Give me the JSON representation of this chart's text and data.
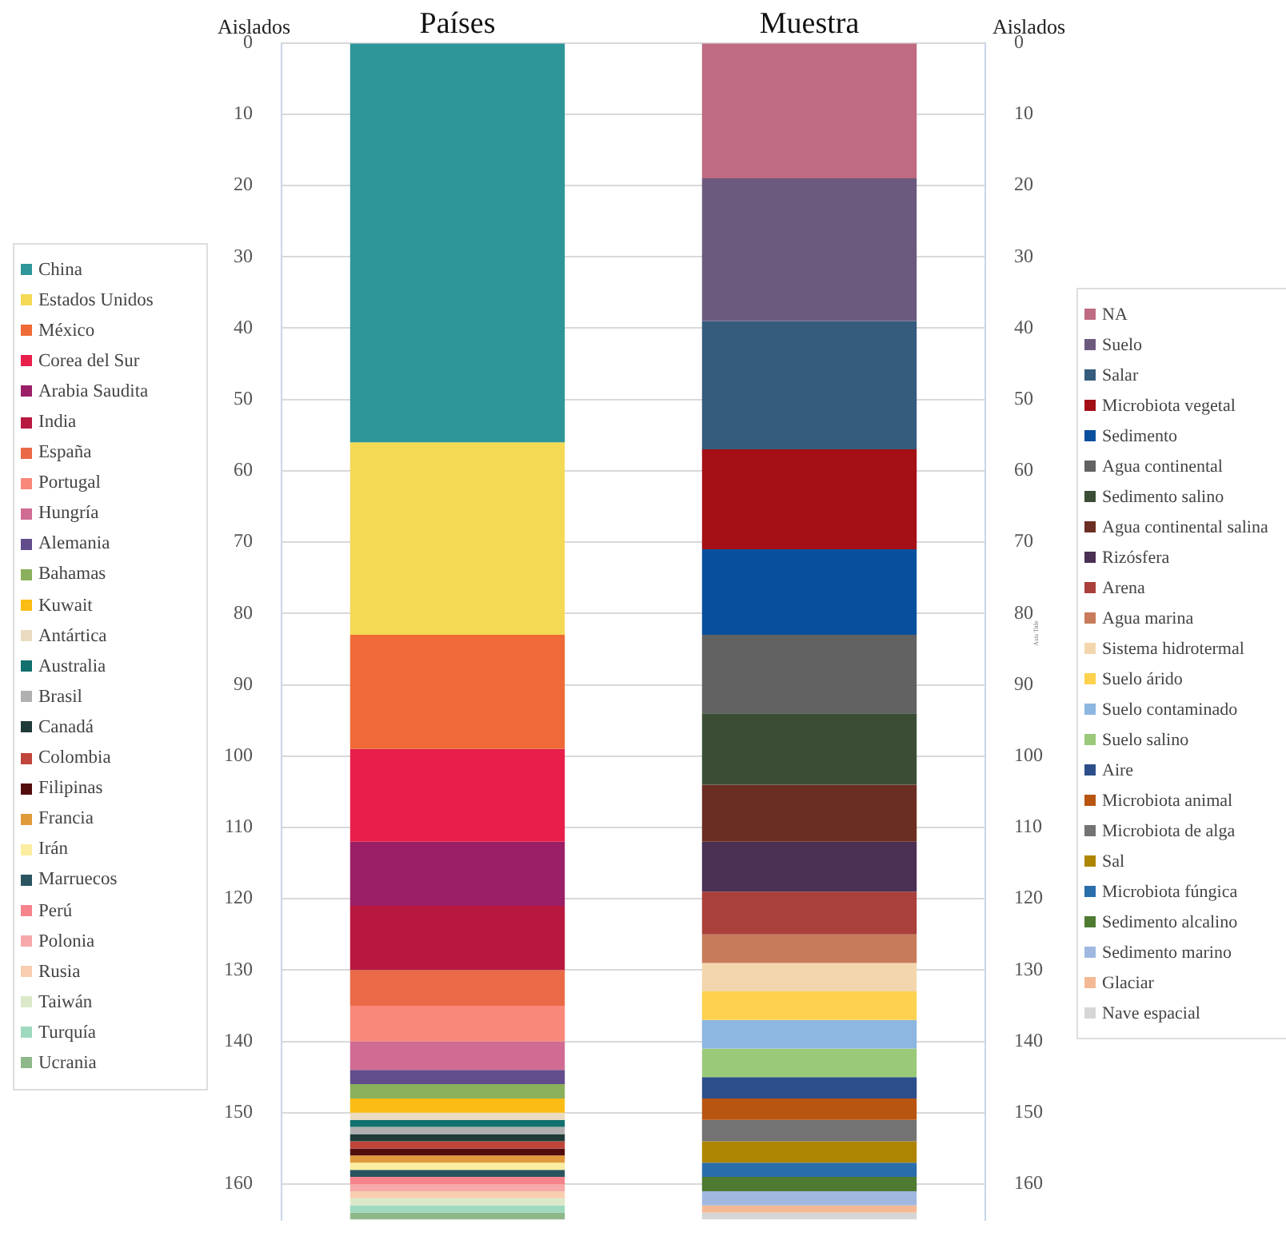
{
  "chart_data": {
    "type": "bar",
    "stacked": true,
    "categories": [
      "Países",
      "Muestra"
    ],
    "ylabel": "Aislados",
    "y2label": "Aislados",
    "annotations": [
      "Axis Title"
    ],
    "ylim": [
      165,
      0
    ],
    "yticks": [
      0,
      10,
      20,
      30,
      40,
      50,
      60,
      70,
      80,
      90,
      100,
      110,
      120,
      130,
      140,
      150,
      160
    ],
    "y2lim": [
      165,
      0
    ],
    "y2ticks": [
      0,
      10,
      20,
      30,
      40,
      50,
      60,
      70,
      80,
      90,
      100,
      110,
      120,
      130,
      140,
      150,
      160
    ],
    "grid": "y",
    "legend": "left",
    "series": [
      {
        "name": "China",
        "color": "#2e9599",
        "values": [
          56,
          null
        ]
      },
      {
        "name": "Estados Unidos",
        "color": "#f4d955",
        "values": [
          27,
          null
        ]
      },
      {
        "name": "México",
        "color": "#ef6a36",
        "values": [
          16,
          null
        ]
      },
      {
        "name": "Corea del Sur",
        "color": "#e81e4b",
        "values": [
          13,
          null
        ]
      },
      {
        "name": "Arabia Saudita",
        "color": "#9b1f66",
        "values": [
          9,
          null
        ]
      },
      {
        "name": "India",
        "color": "#b8183f",
        "values": [
          9,
          null
        ]
      },
      {
        "name": "España",
        "color": "#ea6a47",
        "values": [
          5,
          null
        ]
      },
      {
        "name": "Portugal",
        "color": "#f9887a",
        "values": [
          5,
          null
        ]
      },
      {
        "name": "Hungría",
        "color": "#d06b94",
        "values": [
          4,
          null
        ]
      },
      {
        "name": "Alemania",
        "color": "#624d8c",
        "values": [
          2,
          null
        ]
      },
      {
        "name": "Bahamas",
        "color": "#8ab05c",
        "values": [
          2,
          null
        ]
      },
      {
        "name": "Kuwait",
        "color": "#fbbd15",
        "values": [
          2,
          null
        ]
      },
      {
        "name": "Antártica",
        "color": "#eadbc0",
        "values": [
          1,
          null
        ]
      },
      {
        "name": "Australia",
        "color": "#12706e",
        "values": [
          1,
          null
        ]
      },
      {
        "name": "Brasil",
        "color": "#b0b0b0",
        "values": [
          1,
          null
        ]
      },
      {
        "name": "Canadá",
        "color": "#1f3a38",
        "values": [
          1,
          null
        ]
      },
      {
        "name": "Colombia",
        "color": "#c0453a",
        "values": [
          1,
          null
        ]
      },
      {
        "name": "Filipinas",
        "color": "#520c0c",
        "values": [
          1,
          null
        ]
      },
      {
        "name": "Francia",
        "color": "#e09a3a",
        "values": [
          1,
          null
        ]
      },
      {
        "name": "Irán",
        "color": "#fbeea0",
        "values": [
          1,
          null
        ]
      },
      {
        "name": "Marruecos",
        "color": "#2a5560",
        "values": [
          1,
          null
        ]
      },
      {
        "name": "Perú",
        "color": "#f6838c",
        "values": [
          1,
          null
        ]
      },
      {
        "name": "Polonia",
        "color": "#f7a8a8",
        "values": [
          1,
          null
        ]
      },
      {
        "name": "Rusia",
        "color": "#f8cdb0",
        "values": [
          1,
          null
        ]
      },
      {
        "name": "Taiwán",
        "color": "#dbe9c8",
        "values": [
          1,
          null
        ]
      },
      {
        "name": "Turquía",
        "color": "#9fd9c0",
        "values": [
          1,
          null
        ]
      },
      {
        "name": "Ucrania",
        "color": "#8fb88a",
        "values": [
          1,
          null
        ]
      },
      {
        "name": "NA",
        "color": "#bf6b81",
        "values": [
          null,
          19
        ]
      },
      {
        "name": "Suelo",
        "color": "#6c5a7e",
        "values": [
          null,
          20
        ]
      },
      {
        "name": "Salar",
        "color": "#355b7d",
        "values": [
          null,
          18
        ]
      },
      {
        "name": "Microbiota vegetal",
        "color": "#a30f15",
        "values": [
          null,
          14
        ]
      },
      {
        "name": "Sedimento",
        "color": "#08509e",
        "values": [
          null,
          12
        ]
      },
      {
        "name": "Agua continental",
        "color": "#626262",
        "values": [
          null,
          11
        ]
      },
      {
        "name": "Sedimento salino",
        "color": "#3b4e35",
        "values": [
          null,
          10
        ]
      },
      {
        "name": "Agua continental salina",
        "color": "#6b2e22",
        "values": [
          null,
          8
        ]
      },
      {
        "name": "Rizósfera",
        "color": "#4a3053",
        "values": [
          null,
          7
        ]
      },
      {
        "name": "Arena",
        "color": "#aa403b",
        "values": [
          null,
          6
        ]
      },
      {
        "name": "Agua marina",
        "color": "#c87b5a",
        "values": [
          null,
          4
        ]
      },
      {
        "name": "Sistema hidrotermal",
        "color": "#f3d6ae",
        "values": [
          null,
          4
        ]
      },
      {
        "name": "Suelo árido",
        "color": "#fed24e",
        "values": [
          null,
          4
        ]
      },
      {
        "name": "Suelo contaminado",
        "color": "#8db6e0",
        "values": [
          null,
          4
        ]
      },
      {
        "name": "Suelo salino",
        "color": "#9bc97a",
        "values": [
          null,
          4
        ]
      },
      {
        "name": "Aire",
        "color": "#2c4e8a",
        "values": [
          null,
          3
        ]
      },
      {
        "name": "Microbiota animal",
        "color": "#b85511",
        "values": [
          null,
          3
        ]
      },
      {
        "name": "Microbiota de alga",
        "color": "#737373",
        "values": [
          null,
          3
        ]
      },
      {
        "name": "Sal",
        "color": "#ae8500",
        "values": [
          null,
          3
        ]
      },
      {
        "name": "Microbiota fúngica",
        "color": "#2a6dab",
        "values": [
          null,
          2
        ]
      },
      {
        "name": "Sedimento alcalino",
        "color": "#4e7a32",
        "values": [
          null,
          2
        ]
      },
      {
        "name": "Sedimento marino",
        "color": "#a0b8e0",
        "values": [
          null,
          2
        ]
      },
      {
        "name": "Glaciar",
        "color": "#f4b994",
        "values": [
          null,
          1
        ]
      },
      {
        "name": "Nave espacial",
        "color": "#d6d6d6",
        "values": [
          null,
          1
        ]
      }
    ]
  }
}
